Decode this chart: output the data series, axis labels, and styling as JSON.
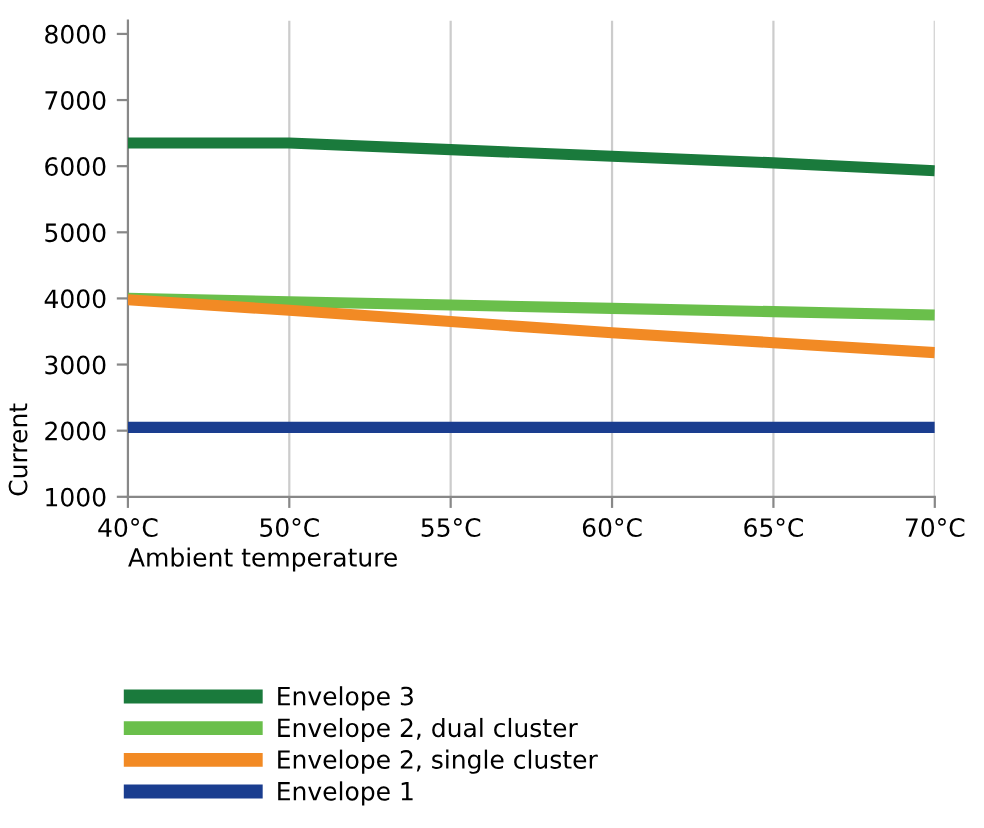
{
  "chart_data": {
    "type": "line",
    "xlabel": "Ambient temperature",
    "ylabel": "Current",
    "categories": [
      "40°C",
      "50°C",
      "55°C",
      "60°C",
      "65°C",
      "70°C"
    ],
    "series": [
      {
        "name": "Envelope 3",
        "color": "#1a7a3c",
        "values": [
          6350,
          6350,
          6250,
          6150,
          6050,
          5930
        ]
      },
      {
        "name": "Envelope 2, dual cluster",
        "color": "#6abf4b",
        "values": [
          4000,
          3950,
          3900,
          3850,
          3800,
          3750
        ]
      },
      {
        "name": "Envelope 2, single cluster",
        "color": "#f28a24",
        "values": [
          3980,
          3820,
          3650,
          3480,
          3330,
          3180
        ]
      },
      {
        "name": "Envelope 1",
        "color": "#1a3d8f",
        "values": [
          2050,
          2050,
          2050,
          2050,
          2050,
          2050
        ]
      }
    ],
    "ylim": [
      1000,
      8200
    ],
    "yticks": [
      1000,
      2000,
      3000,
      4000,
      5000,
      6000,
      7000,
      8000
    ],
    "grid": "x",
    "legend": "bottom",
    "marker": "none",
    "line_style": "solid"
  }
}
